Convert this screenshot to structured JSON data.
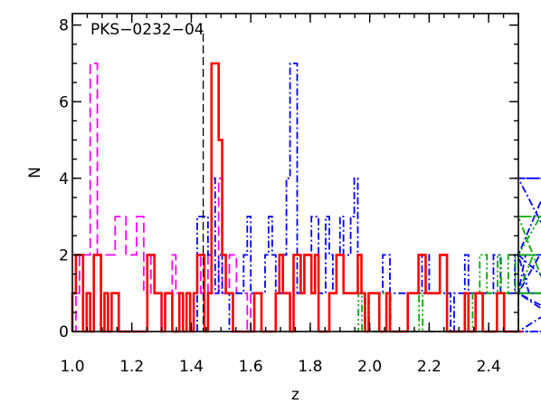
{
  "chart_data": {
    "type": "histogram",
    "xlabel": "z",
    "ylabel": "N",
    "xlim": [
      1.0,
      2.5
    ],
    "ylim": [
      0,
      8.3
    ],
    "x_ticks": [
      1.0,
      1.2,
      1.4,
      1.6,
      1.8,
      2.0,
      2.2,
      2.4
    ],
    "x_tick_labels": [
      "1.0",
      "1.2",
      "1.4",
      "1.6",
      "1.8",
      "2.0",
      "2.2",
      "2.4"
    ],
    "y_ticks": [
      0,
      2,
      4,
      6,
      8
    ],
    "y_tick_labels": [
      "0",
      "2",
      "4",
      "6",
      "8"
    ],
    "grid": false,
    "legend": "none",
    "annotation": {
      "text": "PKS−0232−04",
      "marker_z": 1.44
    },
    "bin_width": 0.012,
    "series": [
      {
        "style": "dashed",
        "color": "#ff00ff",
        "x_start": 1.0,
        "values": [
          0,
          1,
          2,
          2,
          2,
          7,
          7,
          2,
          2,
          2,
          2,
          2,
          3,
          3,
          3,
          2,
          2,
          2,
          3,
          3,
          1,
          2,
          1,
          1,
          1,
          0,
          1,
          1,
          2,
          1,
          0,
          1,
          1,
          0,
          1,
          2,
          1,
          1,
          2,
          1,
          1,
          4,
          1,
          1,
          2,
          2,
          1,
          1,
          1,
          0,
          1,
          1,
          1,
          0,
          0,
          0,
          0
        ]
      },
      {
        "style": "dash-dot",
        "color": "#0000ff",
        "x_start": 1.42,
        "values": [
          3,
          3,
          3,
          2,
          4,
          1,
          2,
          1,
          1,
          0,
          1,
          1,
          1,
          2,
          3,
          1,
          1,
          1,
          1,
          2,
          3,
          2,
          1,
          1,
          2,
          4,
          7,
          7,
          1,
          1,
          2,
          2,
          3,
          3,
          1,
          1,
          3,
          2,
          1,
          2,
          3,
          2,
          2,
          3,
          4,
          1,
          1,
          0,
          1,
          1,
          1,
          1,
          2,
          2,
          1,
          1,
          1,
          1,
          1,
          1,
          1,
          1,
          2,
          1,
          2,
          1,
          1,
          1,
          1,
          1,
          1,
          0,
          1,
          1,
          1,
          2,
          1,
          1,
          1,
          1,
          1,
          1,
          1,
          2,
          2,
          1,
          1,
          1,
          1,
          2,
          1,
          1,
          2,
          1,
          1,
          1,
          2,
          2,
          2,
          4,
          4,
          2,
          1,
          1,
          1,
          1,
          0,
          1,
          1,
          1,
          0
        ]
      },
      {
        "style": "dash-dot-dot",
        "color": "#00aa00",
        "x_start": 1.95,
        "values": [
          0,
          1,
          0,
          1,
          0,
          0,
          0,
          1,
          1,
          1,
          0,
          0,
          0,
          0,
          0,
          0,
          0,
          0,
          1,
          0,
          0,
          0,
          0,
          0,
          0,
          0,
          0,
          0,
          0,
          0,
          0,
          0,
          0,
          1,
          1,
          2,
          2,
          1,
          1,
          1,
          2,
          1,
          1,
          2,
          2,
          1,
          1,
          1,
          1,
          1,
          2,
          2,
          3,
          3,
          1,
          1
        ]
      },
      {
        "style": "solid",
        "color": "#ff0000",
        "x_start": 1.0,
        "values": [
          1,
          2,
          2,
          0,
          1,
          0,
          2,
          2,
          0,
          1,
          0,
          1,
          1,
          0,
          0,
          0,
          0,
          0,
          0,
          0,
          0,
          2,
          2,
          1,
          1,
          0,
          1,
          1,
          0,
          0,
          1,
          0,
          1,
          0,
          1,
          2,
          2,
          0,
          1,
          7,
          7,
          5,
          2,
          1,
          1,
          0,
          0,
          0,
          0,
          0,
          0,
          1,
          1,
          0,
          0,
          0,
          0,
          1,
          2,
          1,
          1,
          0,
          2,
          2,
          1,
          2,
          2,
          1,
          2,
          0,
          0,
          0,
          1,
          1,
          2,
          2,
          1,
          1,
          1,
          1,
          2,
          1,
          0,
          1,
          1,
          1,
          0,
          0,
          1,
          0,
          0,
          0,
          0,
          0,
          1,
          1,
          1,
          2,
          2,
          1,
          1,
          1,
          1,
          2,
          2,
          0,
          0,
          0,
          0,
          0,
          1,
          0,
          0,
          1,
          1,
          0,
          0,
          0,
          0,
          1,
          1,
          0,
          0,
          0,
          0,
          0,
          0
        ]
      }
    ]
  }
}
